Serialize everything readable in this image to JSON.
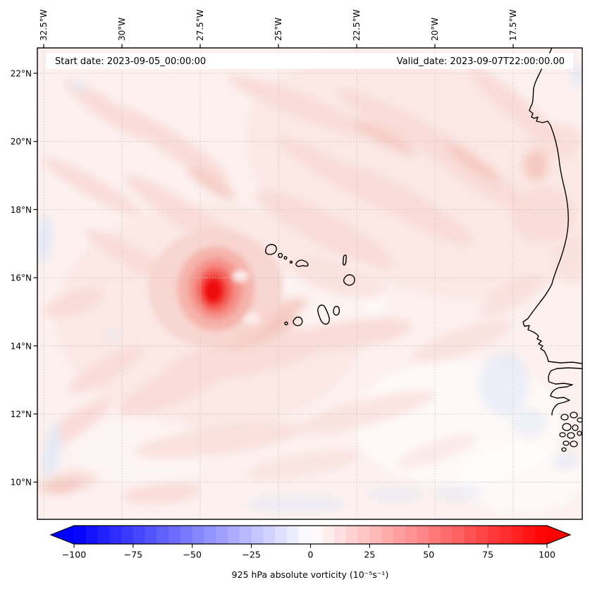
{
  "titles": {
    "start": "Start date: 2023-09-05_00:00:00",
    "valid": "Valid_date: 2023-09-07T22:00:00.00"
  },
  "axes": {
    "top_ticks": [
      {
        "lon": -32.5,
        "label": "32.5°W"
      },
      {
        "lon": -30.0,
        "label": "30°W"
      },
      {
        "lon": -27.5,
        "label": "27.5°W"
      },
      {
        "lon": -25.0,
        "label": "25°W"
      },
      {
        "lon": -22.5,
        "label": "22.5°W"
      },
      {
        "lon": -20.0,
        "label": "20°W"
      },
      {
        "lon": -17.5,
        "label": "17.5°W"
      }
    ],
    "left_ticks": [
      {
        "lat": 22,
        "label": "22°N"
      },
      {
        "lat": 20,
        "label": "20°N"
      },
      {
        "lat": 18,
        "label": "18°N"
      },
      {
        "lat": 16,
        "label": "16°N"
      },
      {
        "lat": 14,
        "label": "14°N"
      },
      {
        "lat": 12,
        "label": "12°N"
      },
      {
        "lat": 10,
        "label": "10°N"
      }
    ]
  },
  "colorbar": {
    "min": -100,
    "max": 100,
    "segment_step": 5,
    "colormap": "bwr",
    "extend": "both",
    "ticks": [
      {
        "value": -100,
        "label": "−100"
      },
      {
        "value": -75,
        "label": "−75"
      },
      {
        "value": -50,
        "label": "−50"
      },
      {
        "value": -25,
        "label": "−25"
      },
      {
        "value": 0,
        "label": "0"
      },
      {
        "value": 25,
        "label": "25"
      },
      {
        "value": 50,
        "label": "50"
      },
      {
        "value": 75,
        "label": "75"
      },
      {
        "value": 100,
        "label": "100"
      }
    ],
    "label": "925 hPa absolute vorticity (10⁻⁵s⁻¹)"
  },
  "chart_data": {
    "type": "heatmap",
    "subtype": "filled-contour geographic map (PlateCarree)",
    "field": "925 hPa absolute vorticity",
    "units": "10⁻⁵ s⁻¹",
    "colormap": "bwr (blue-white-red), discrete levels every 5 from -100 to 100, extended both ends",
    "start_date": "2023-09-05_00:00:00",
    "valid_date": "2023-09-07T22:00:00.00",
    "extent": {
      "lon_min_deg_east": -32.7,
      "lon_max_deg_east": -15.3,
      "lat_min_deg_north": 8.9,
      "lat_max_deg_north": 22.75
    },
    "gridline_lons_deg_east": [
      -32.5,
      -30,
      -27.5,
      -25,
      -22.5,
      -20,
      -17.5
    ],
    "gridline_lats_deg_north": [
      22,
      20,
      18,
      16,
      14,
      12,
      10
    ],
    "features": {
      "vortex_maximum": {
        "lon_deg_east": -27.0,
        "lat_deg_north": 15.7,
        "approx_peak_value": 100,
        "description": "compact intense cyclonic vorticity core (deep red) west of the Cape Verde islands with spiral bands"
      },
      "background_field": "mostly weak positive values (0 to +10, pale pink) with scattered weak negative patches (pale blue)",
      "landmarks": [
        "Cape Verde islands (black outlines)",
        "West African coastline: Mauritania, Senegal (Cap-Vert/Dakar), Gambia river, Casamance, Guinea-Bissau Bijagós islands"
      ]
    },
    "legend_position": "horizontal colorbar below map"
  }
}
